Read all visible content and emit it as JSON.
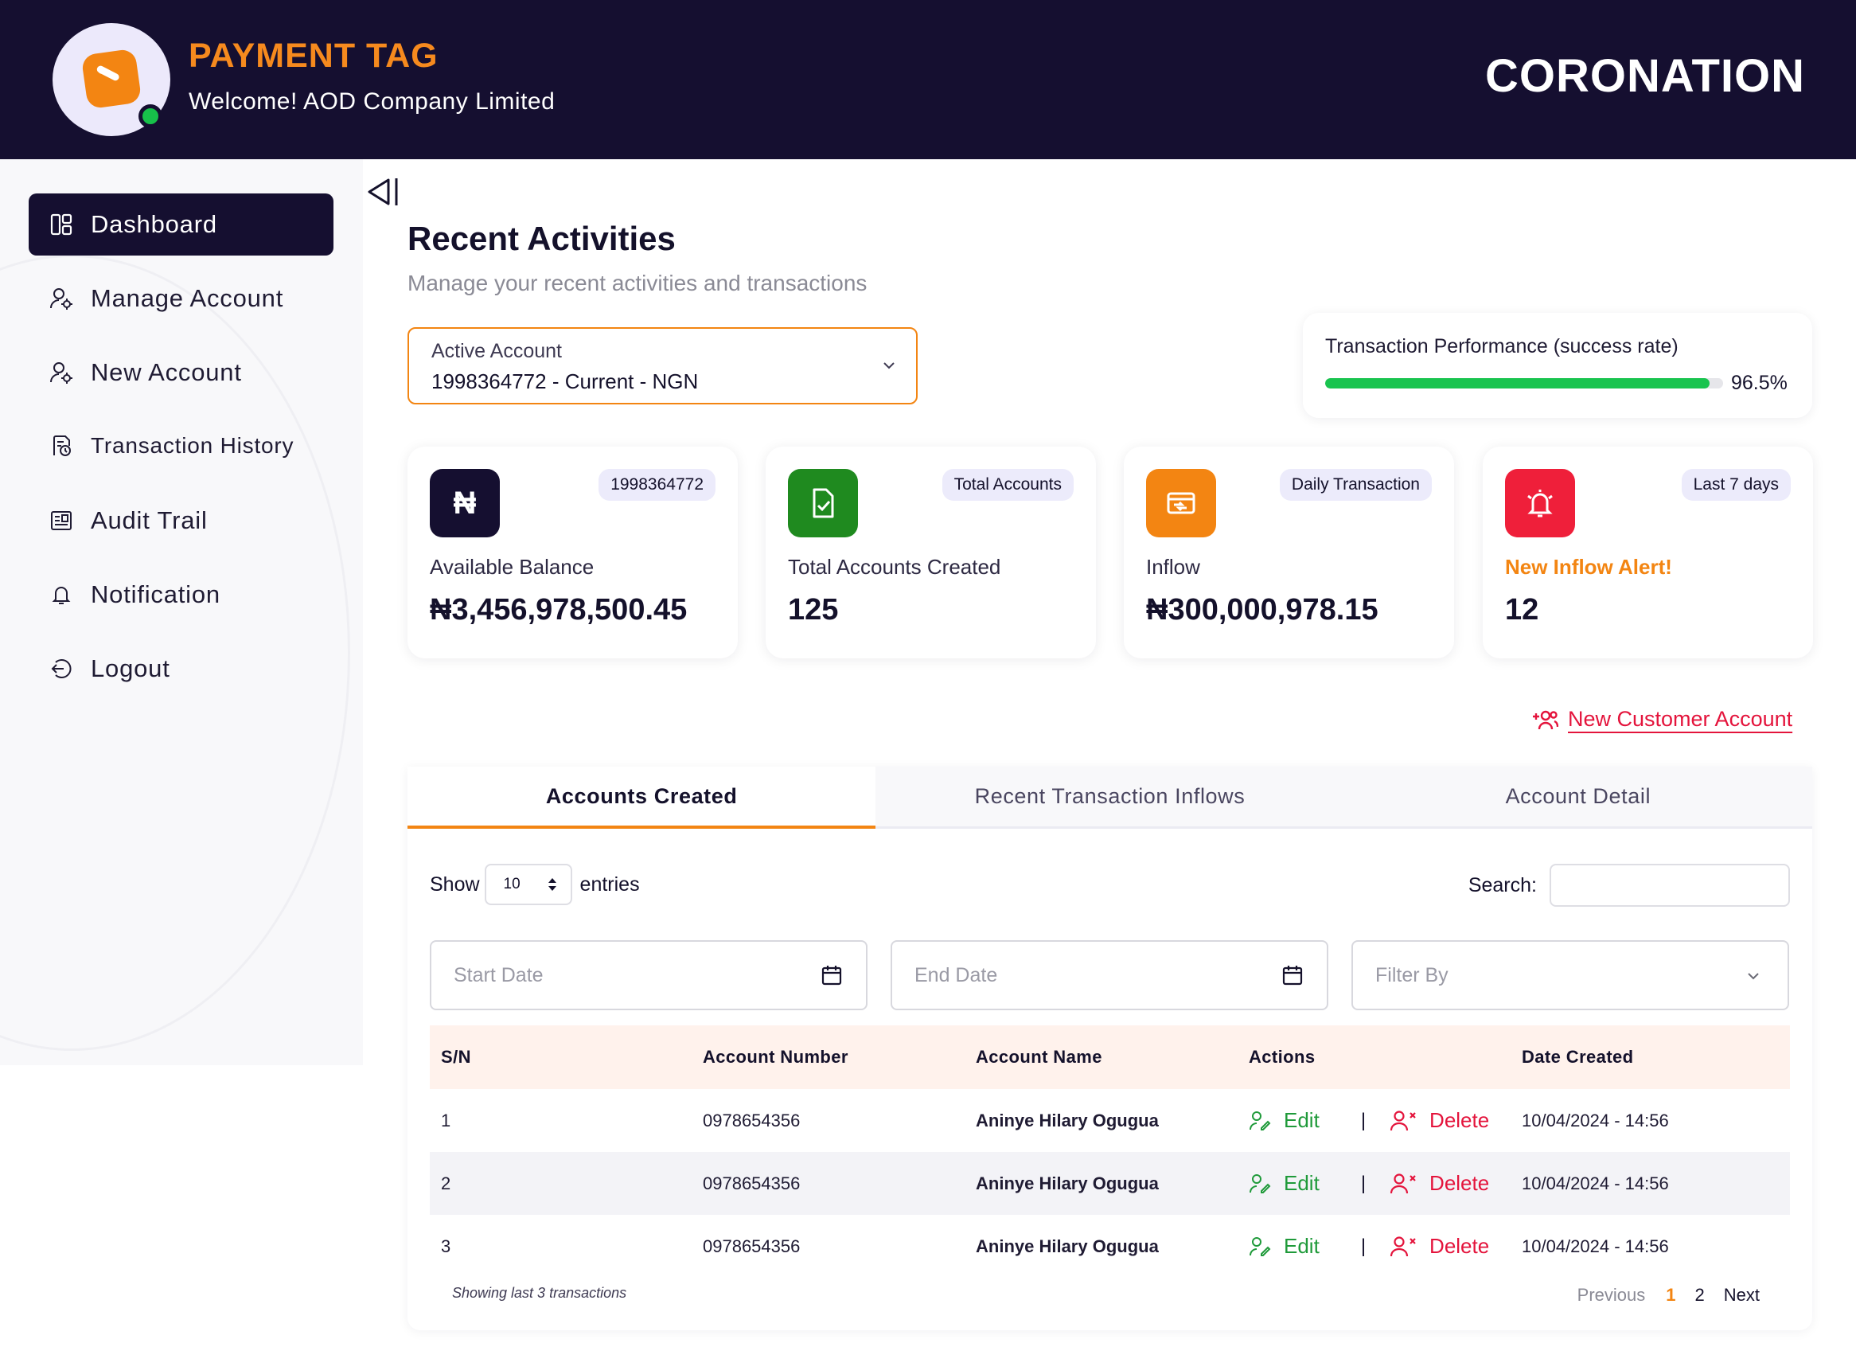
{
  "header": {
    "brand": "PAYMENT TAG",
    "welcome": "Welcome! AOD Company Limited",
    "bank": "CORONATION"
  },
  "sidebar": {
    "items": [
      {
        "label": "Dashboard",
        "icon": "dashboard-icon",
        "active": true
      },
      {
        "label": "Manage Account",
        "icon": "user-gear-icon"
      },
      {
        "label": "New Account",
        "icon": "user-gear-icon"
      },
      {
        "label": "Transaction History",
        "icon": "history-icon"
      },
      {
        "label": "Audit Trail",
        "icon": "audit-icon"
      },
      {
        "label": "Notification",
        "icon": "bell-icon"
      },
      {
        "label": "Logout",
        "icon": "logout-icon"
      }
    ]
  },
  "main": {
    "title": "Recent Activities",
    "subtitle": "Manage your recent activities and transactions",
    "account_select": {
      "label": "Active Account",
      "value": "1998364772 - Current - NGN"
    },
    "performance": {
      "label": "Transaction Performance (success rate)",
      "value_text": "96.5%",
      "value": 96.5
    },
    "stats": [
      {
        "badge": "1998364772",
        "label": "Available Balance",
        "value": "₦3,456,978,500.45",
        "color": "#150f30",
        "icon": "naira-icon"
      },
      {
        "badge": "Total Accounts",
        "label": "Total Accounts Created",
        "value": "125",
        "color": "#1f8a1f",
        "icon": "file-check-icon"
      },
      {
        "badge": "Daily Transaction",
        "label": "Inflow",
        "value": "₦300,000,978.15",
        "color": "#f38512",
        "icon": "transfer-icon"
      },
      {
        "badge": "Last 7 days",
        "label": "New Inflow Alert!",
        "value": "12",
        "color": "#ef1f3a",
        "icon": "bell-alert-icon"
      }
    ],
    "new_customer": "New Customer Account"
  },
  "tabs": [
    "Accounts Created",
    "Recent Transaction Inflows",
    "Account Detail"
  ],
  "table": {
    "show_label": "Show",
    "entries_value": "10",
    "entries_label": "entries",
    "search_label": "Search:",
    "start_date": "Start Date",
    "end_date": "End Date",
    "filter_by": "Filter By",
    "columns": [
      "S/N",
      "Account Number",
      "Account Name",
      "Actions",
      "Date Created"
    ],
    "edit_label": "Edit",
    "delete_label": "Delete",
    "separator": "|",
    "rows": [
      {
        "sn": "1",
        "account_number": "0978654356",
        "account_name": "Aninye Hilary Ogugua",
        "date": "10/04/2024 - 14:56"
      },
      {
        "sn": "2",
        "account_number": "0978654356",
        "account_name": "Aninye Hilary Ogugua",
        "date": "10/04/2024 - 14:56"
      },
      {
        "sn": "3",
        "account_number": "0978654356",
        "account_name": "Aninye Hilary Ogugua",
        "date": "10/04/2024 - 14:56"
      }
    ],
    "footer_note": "Showing last 3 transactions",
    "pagination": {
      "previous": "Previous",
      "pages": [
        "1",
        "2"
      ],
      "current": "1",
      "next": "Next"
    }
  }
}
